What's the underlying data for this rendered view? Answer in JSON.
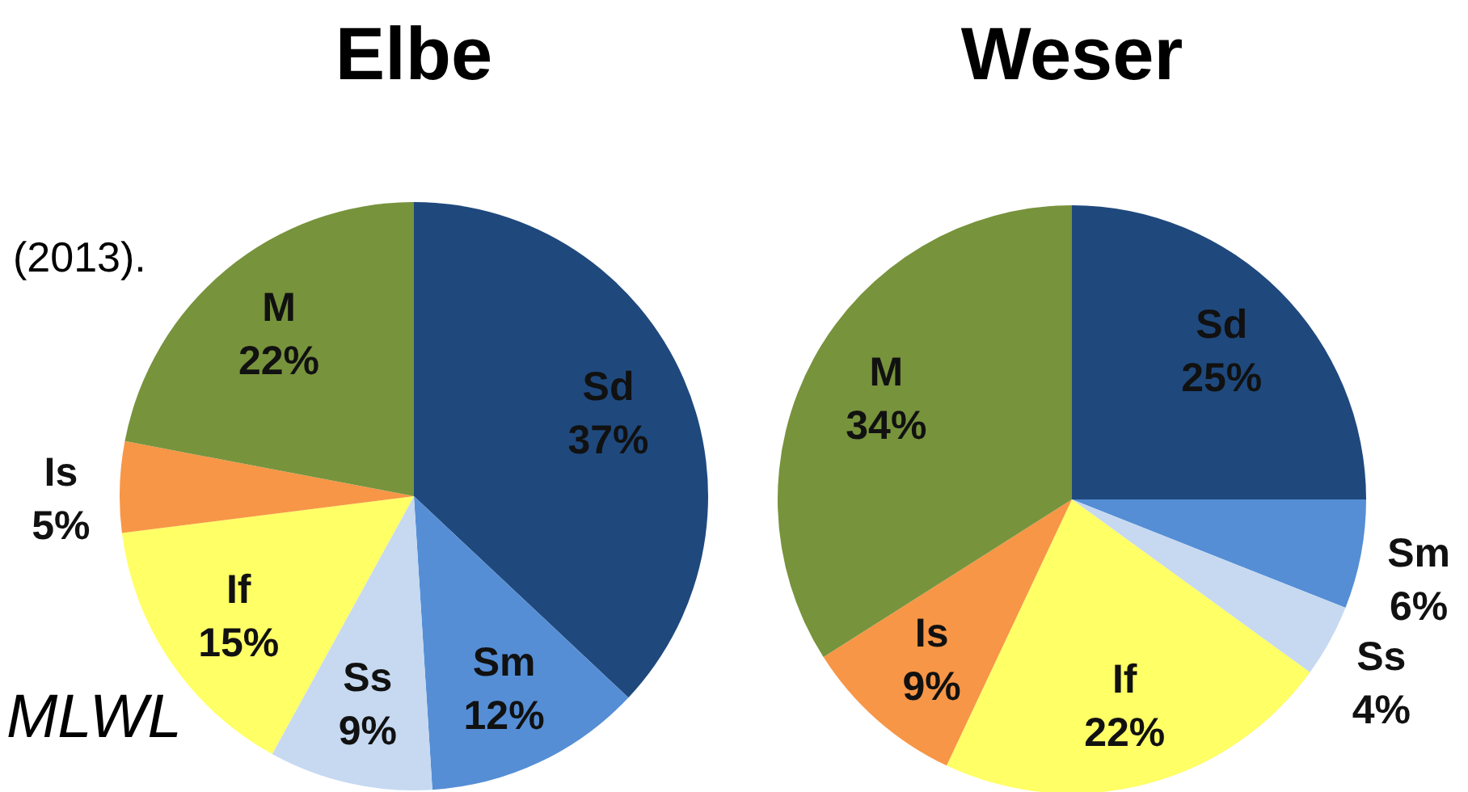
{
  "chart_data": [
    {
      "type": "pie",
      "title": "Elbe",
      "categories": [
        "Sd",
        "Sm",
        "Ss",
        "If",
        "Is",
        "M"
      ],
      "values": [
        37,
        12,
        9,
        15,
        5,
        22
      ],
      "colors": [
        "#1f497d",
        "#558ed5",
        "#c6d9f1",
        "#ffff66",
        "#f79646",
        "#77933c"
      ],
      "value_labels": [
        "37%",
        "12%",
        "9%",
        "15%",
        "5%",
        "22%"
      ],
      "annotations": [
        "(2013).",
        "MLWL"
      ]
    },
    {
      "type": "pie",
      "title": "Weser",
      "categories": [
        "Sd",
        "Sm",
        "Ss",
        "If",
        "Is",
        "M"
      ],
      "values": [
        25,
        6,
        4,
        22,
        9,
        34
      ],
      "colors": [
        "#1f497d",
        "#558ed5",
        "#c6d9f1",
        "#ffff66",
        "#f79646",
        "#77933c"
      ],
      "value_labels": [
        "25%",
        "6%",
        "4%",
        "22%",
        "9%",
        "34%"
      ]
    }
  ]
}
